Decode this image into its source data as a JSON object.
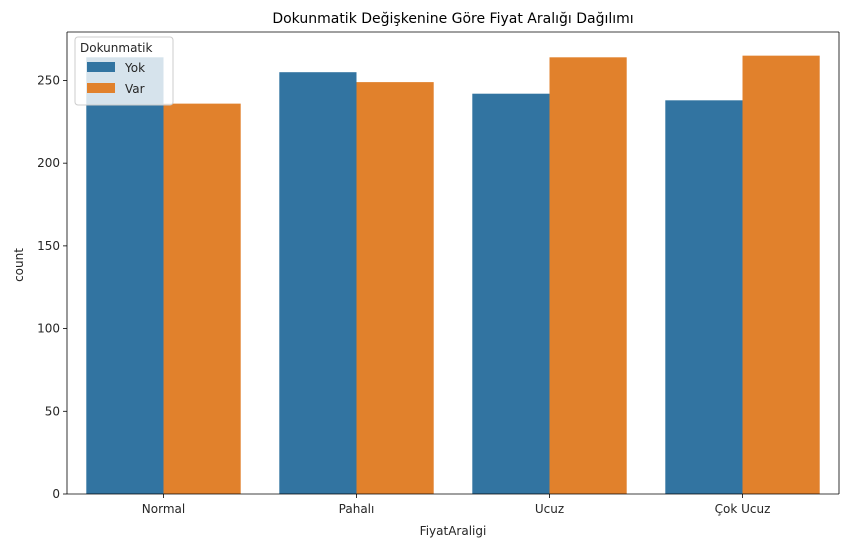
{
  "chart_data": {
    "type": "bar",
    "title": "Dokunmatik Değişkenine Göre Fiyat Aralığı Dağılımı",
    "xlabel": "FiyatAraligi",
    "ylabel": "count",
    "categories": [
      "Normal",
      "Pahalı",
      "Ucuz",
      "Çok Ucuz"
    ],
    "series": [
      {
        "name": "Yok",
        "values": [
          264,
          255,
          242,
          238
        ],
        "color": "#3274a1"
      },
      {
        "name": "Var",
        "values": [
          236,
          249,
          264,
          265
        ],
        "color": "#e1812c"
      }
    ],
    "ylim": [
      0,
      279.3
    ],
    "yticks": [
      0,
      50,
      100,
      150,
      200,
      250
    ],
    "legend": {
      "title": "Dokunmatik",
      "placement": "top-left"
    },
    "grid": false
  }
}
